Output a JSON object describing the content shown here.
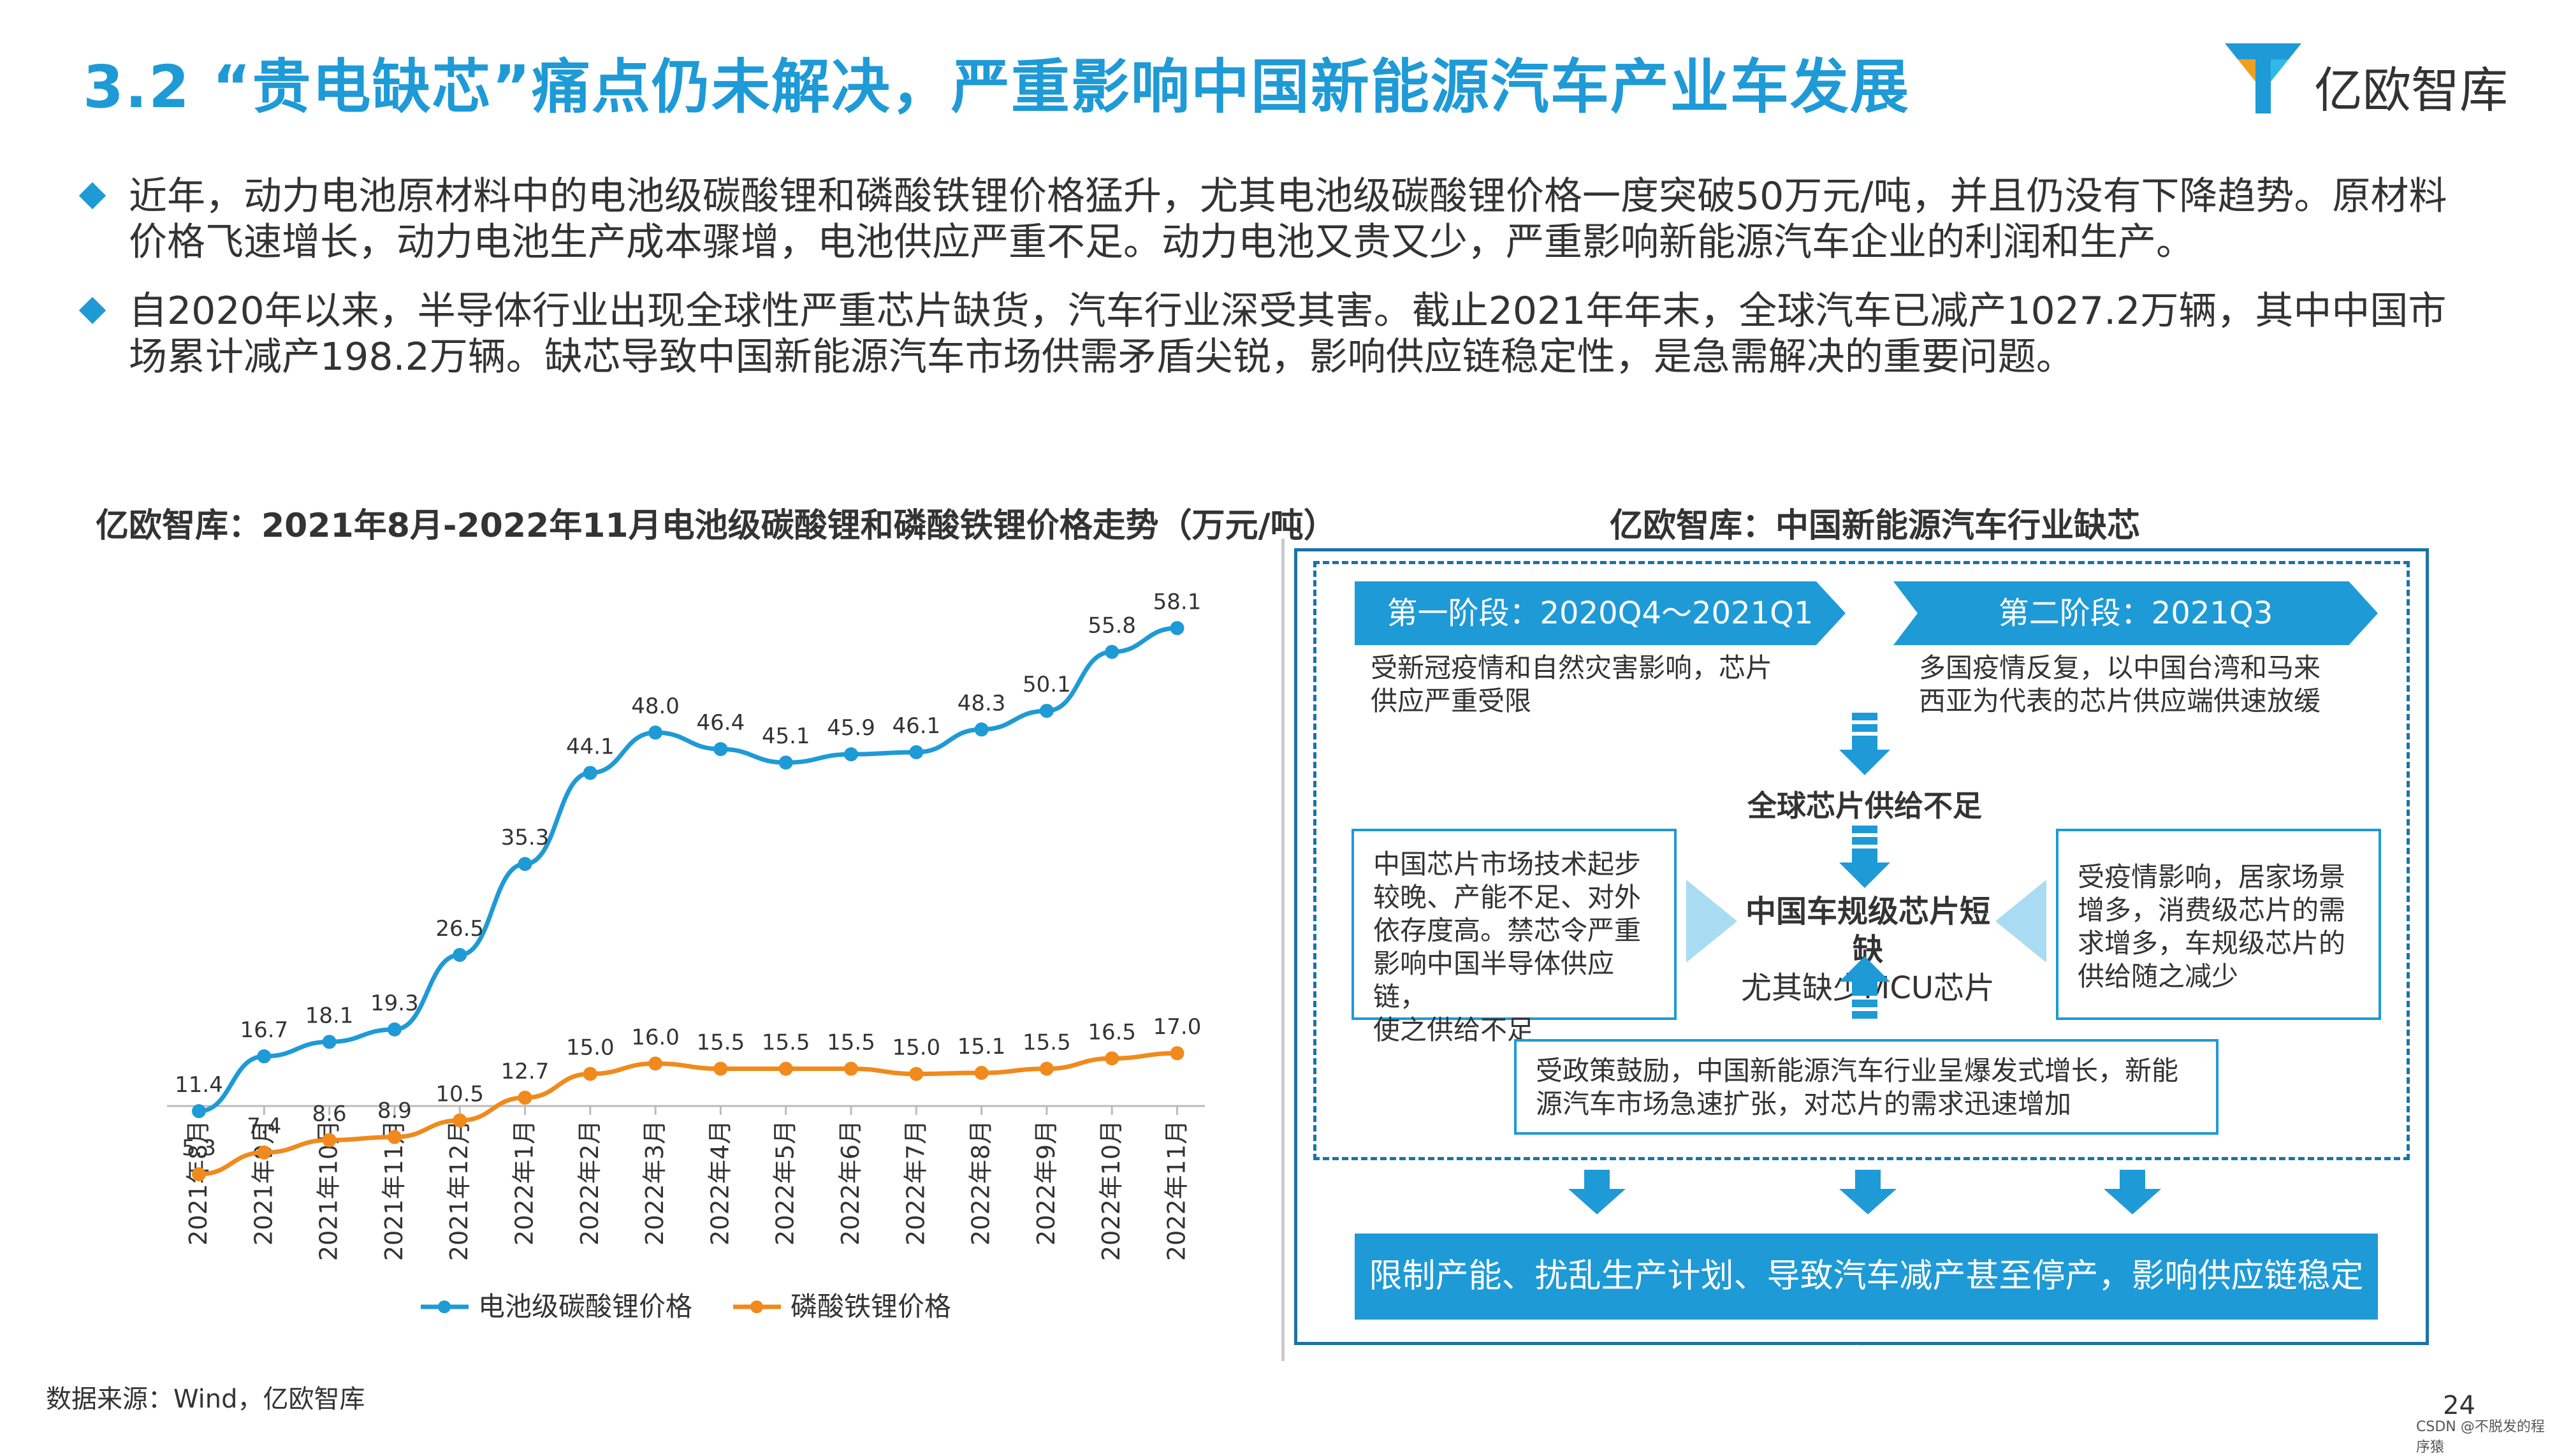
{
  "header": {
    "title": "3.2 “贵电缺芯”痛点仍未解决，严重影响中国新能源汽车产业车发展",
    "logo_text": "亿欧智库"
  },
  "bullets": [
    "近年，动力电池原材料中的电池级碳酸锂和磷酸铁锂价格猛升，尤其电池级碳酸锂价格一度突破50万元/吨，并且仍没有下降趋势。原材料价格飞速增长，动力电池生产成本骤增，电池供应严重不足。动力电池又贵又少，严重影响新能源汽车企业的利润和生产。",
    "自2020年以来，半导体行业出现全球性严重芯片缺货，汽车行业深受其害。截止2021年年末，全球汽车已减产1027.2万辆，其中中国市场累计减产198.2万辆。缺芯导致中国新能源汽车市场供需矛盾尖锐，影响供应链稳定性，是急需解决的重要问题。"
  ],
  "left_section_title": "亿欧智库：2021年8月-2022年11月电池级碳酸锂和磷酸铁锂价格走势（万元/吨）",
  "right_section_title": "亿欧智库：中国新能源汽车行业缺芯",
  "chart_data": {
    "type": "line",
    "title": "亿欧智库：2021年8月-2022年11月电池级碳酸锂和磷酸铁锂价格走势（万元/吨）",
    "categories": [
      "2021年8月",
      "2021年9月",
      "2021年10月",
      "2021年11月",
      "2021年12月",
      "2022年1月",
      "2022年2月",
      "2022年3月",
      "2022年4月",
      "2022年5月",
      "2022年6月",
      "2022年7月",
      "2022年8月",
      "2022年9月",
      "2022年10月",
      "2022年11月"
    ],
    "series": [
      {
        "name": "电池级碳酸锂价格",
        "color": "#1e9ad6",
        "values": [
          11.4,
          16.7,
          18.1,
          19.3,
          26.5,
          35.3,
          44.1,
          48.0,
          46.4,
          45.1,
          45.9,
          46.1,
          48.3,
          50.1,
          55.8,
          58.1
        ]
      },
      {
        "name": "磷酸铁锂价格",
        "color": "#f08a1c",
        "values": [
          5.3,
          7.4,
          8.6,
          8.9,
          10.5,
          12.7,
          15.0,
          16.0,
          15.5,
          15.5,
          15.5,
          15.0,
          15.1,
          15.5,
          16.5,
          17.0
        ]
      }
    ],
    "ylim": [
      0,
      62
    ],
    "grid": false,
    "legend": "bottom"
  },
  "diagram": {
    "stage1_label": "第一阶段：2020Q4～2021Q1",
    "stage1_desc": [
      "受新冠疫情和自然灾害影响，芯片",
      "供应严重受限"
    ],
    "stage2_label": "第二阶段：2021Q3",
    "stage2_desc": [
      "多国疫情反复，以中国台湾和马来",
      "西亚为代表的芯片供应端供速放缓"
    ],
    "global_shortage": "全球芯片供给不足",
    "left_box": [
      "中国芯片市场技术起步",
      "较晚、产能不足、对外",
      "依存度高。禁芯令严重",
      "影响中国半导体供应链，",
      "使之供给不足"
    ],
    "center_title": "中国车规级芯片短缺",
    "center_sub": "尤其缺少MCU芯片",
    "right_box": [
      "受疫情影响，居家场景",
      "增多，消费级芯片的需",
      "求增多，车规级芯片的",
      "供给随之减少"
    ],
    "bottom_box": [
      "受政策鼓励，中国新能源汽车行业呈爆发式增长，新能",
      "源汽车市场急速扩张，对芯片的需求迅速增加"
    ],
    "result": "限制产能、扰乱生产计划、导致汽车减产甚至停产，影响供应链稳定性"
  },
  "footer": {
    "source": "数据来源：Wind，亿欧智库",
    "page_number": "24",
    "csdn": "CSDN @不脱发的程序猿"
  },
  "colors": {
    "accent": "#1e9ad6",
    "orange": "#f08a1c",
    "frame": "#1a74a8"
  }
}
